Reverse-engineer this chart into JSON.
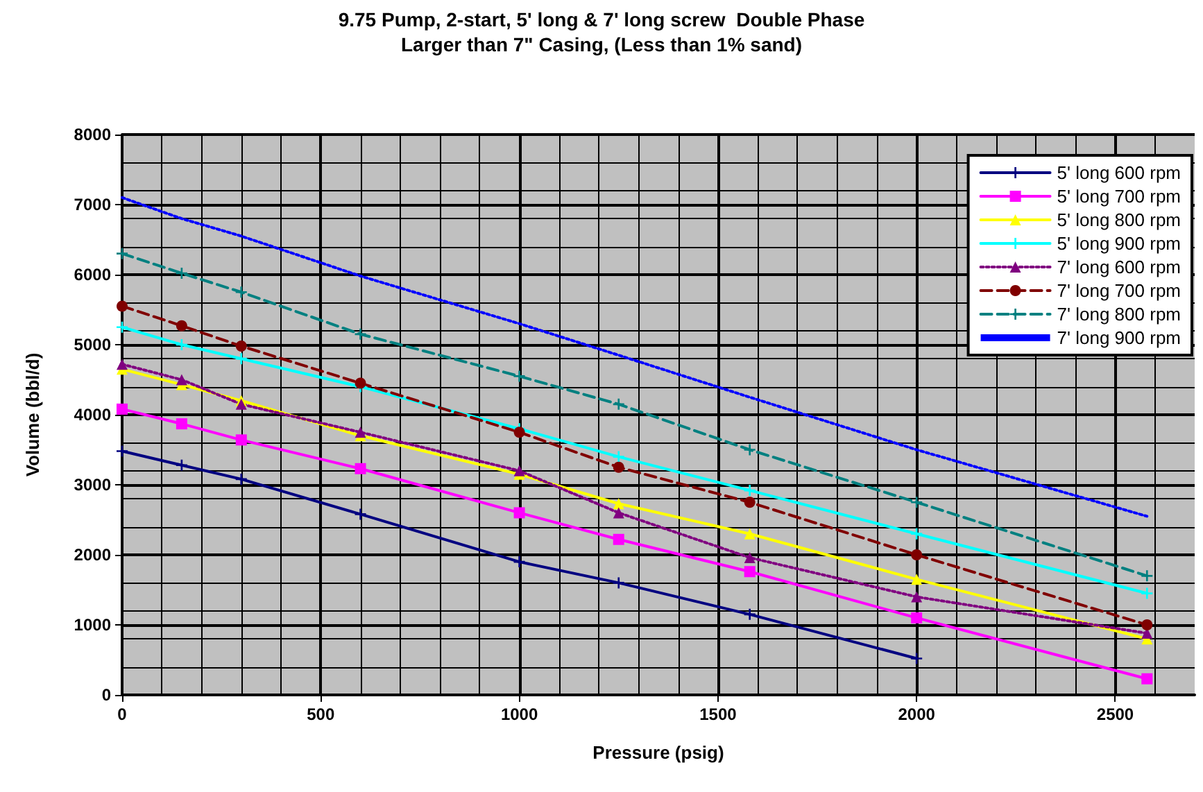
{
  "chart_data": {
    "type": "line",
    "title": "9.75 Pump, 2-start, 5' long & 7' long screw  Double Phase",
    "subtitle": "Larger than 7\" Casing, (Less than 1% sand)",
    "xlabel": "Pressure (psig)",
    "ylabel": "Volume (bbl/d)",
    "x": [
      0,
      150,
      300,
      600,
      1000,
      1250,
      1580,
      2000,
      2580
    ],
    "xlim": [
      0,
      2700
    ],
    "xticks": [
      0,
      500,
      1000,
      1500,
      2000,
      2500
    ],
    "ylim": [
      0,
      8000
    ],
    "yticks": [
      0,
      1000,
      2000,
      3000,
      4000,
      5000,
      6000,
      7000,
      8000
    ],
    "grid": true,
    "legend": "top right",
    "series": [
      {
        "name": "5' long 600 rpm",
        "color": "#000080",
        "marker": "cross",
        "line_style": "solid",
        "values": [
          3480,
          3280,
          3080,
          2580,
          1900,
          1600,
          1150,
          520,
          null
        ]
      },
      {
        "name": "5' long 700 rpm",
        "color": "#ff00ff",
        "marker": "square",
        "line_style": "solid",
        "values": [
          4080,
          3870,
          3640,
          3230,
          2600,
          2220,
          1760,
          1100,
          230
        ]
      },
      {
        "name": "5' long 800 rpm",
        "color": "#ffff00",
        "marker": "triangle",
        "line_style": "solid",
        "values": [
          4650,
          4430,
          4200,
          3700,
          3150,
          2730,
          2300,
          1650,
          800
        ]
      },
      {
        "name": "5' long 900 rpm",
        "color": "#00ffff",
        "marker": "cross",
        "line_style": "solid",
        "values": [
          5250,
          5000,
          4800,
          4400,
          3800,
          3400,
          2920,
          2300,
          1450
        ]
      },
      {
        "name": "7' long 600 rpm",
        "color": "#800080",
        "marker": "triangle",
        "line_style": "dotted",
        "values": [
          4720,
          4500,
          4150,
          3750,
          3200,
          2600,
          1960,
          1400,
          880
        ]
      },
      {
        "name": "7' long 700 rpm",
        "color": "#800000",
        "marker": "circle",
        "line_style": "dashed",
        "values": [
          5550,
          5270,
          4980,
          4450,
          3750,
          3250,
          2750,
          2000,
          1000
        ]
      },
      {
        "name": "7' long 800 rpm",
        "color": "#008080",
        "marker": "cross",
        "line_style": "dashed",
        "values": [
          6300,
          6020,
          5750,
          5150,
          4550,
          4150,
          3500,
          2750,
          1700
        ]
      },
      {
        "name": "7' long 900 rpm",
        "color": "#0000ff",
        "marker": "none",
        "line_style": "dotted",
        "values": [
          7100,
          6800,
          6550,
          5980,
          5300,
          4850,
          4250,
          3500,
          2550
        ]
      }
    ]
  }
}
